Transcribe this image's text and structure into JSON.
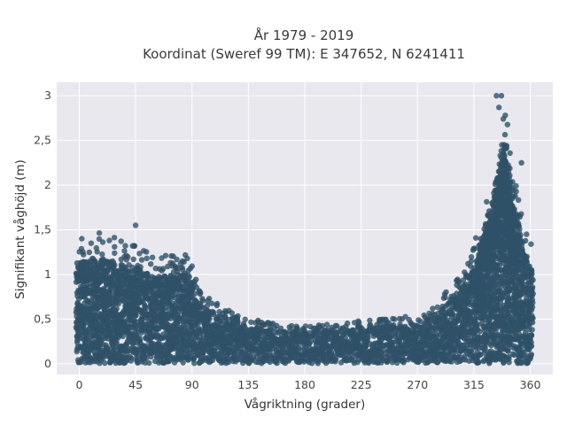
{
  "chart_data": {
    "type": "scatter",
    "title_line1": "År 1979 - 2019",
    "title_line2": "Koordinat (Sweref 99 TM): E 347652, N 6241411",
    "xlabel": "Vågriktning (grader)",
    "ylabel": "Signifikant våghöjd (m)",
    "xlim": [
      -18,
      378
    ],
    "ylim": [
      -0.12,
      3.15
    ],
    "x_ticks": [
      0,
      45,
      90,
      135,
      180,
      225,
      270,
      315,
      360
    ],
    "x_tick_labels": [
      "0",
      "45",
      "90",
      "135",
      "180",
      "225",
      "270",
      "315",
      "360"
    ],
    "y_ticks": [
      0,
      0.5,
      1,
      1.5,
      2,
      2.5,
      3
    ],
    "y_tick_labels": [
      "0",
      "0,5",
      "1",
      "1,5",
      "2",
      "2,5",
      "3"
    ],
    "grid": true,
    "marker_color": "#2f5168",
    "plot_background": "#e8e8ee",
    "envelope_upper": {
      "x": [
        0,
        10,
        20,
        30,
        40,
        45,
        50,
        60,
        70,
        80,
        88,
        95,
        105,
        115,
        125,
        135,
        150,
        165,
        180,
        195,
        210,
        225,
        240,
        255,
        270,
        285,
        295,
        305,
        315,
        322,
        330,
        335,
        340,
        345,
        350,
        355,
        360
      ],
      "y": [
        1.15,
        1.2,
        1.22,
        1.15,
        1.1,
        1.1,
        1.05,
        1.0,
        1.0,
        1.02,
        1.0,
        0.7,
        0.6,
        0.52,
        0.45,
        0.42,
        0.38,
        0.36,
        0.35,
        0.36,
        0.37,
        0.4,
        0.42,
        0.42,
        0.46,
        0.58,
        0.7,
        0.85,
        1.1,
        1.4,
        1.8,
        2.2,
        2.5,
        1.9,
        1.55,
        1.3,
        1.1
      ]
    },
    "envelope_lower": 0.0,
    "notable_points": [
      {
        "x": 45,
        "y": 1.55
      },
      {
        "x": 2,
        "y": 1.4
      },
      {
        "x": 24,
        "y": 1.38
      },
      {
        "x": 333,
        "y": 3.0
      },
      {
        "x": 337,
        "y": 3.0
      },
      {
        "x": 335,
        "y": 2.87
      },
      {
        "x": 340,
        "y": 2.78
      },
      {
        "x": 353,
        "y": 2.25
      },
      {
        "x": 357,
        "y": 1.45
      }
    ]
  }
}
